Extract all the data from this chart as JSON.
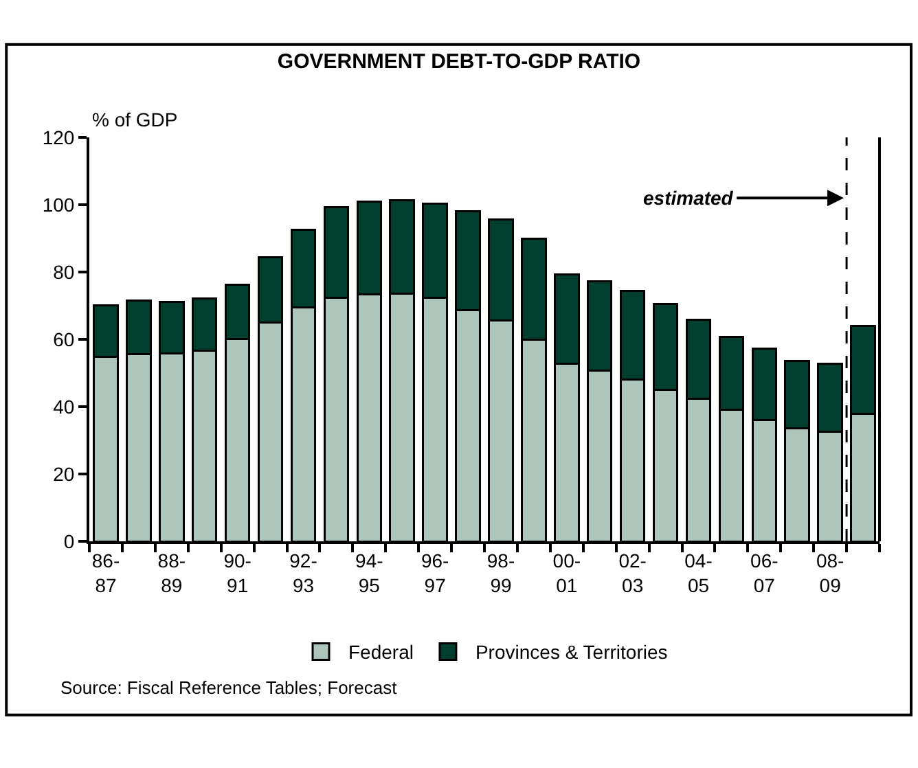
{
  "chart_data": {
    "type": "bar",
    "title": "GOVERNMENT DEBT-TO-GDP RATIO",
    "ylabel": "% of GDP",
    "categories": [
      "86-87",
      null,
      "88-89",
      null,
      "90-91",
      null,
      "92-93",
      null,
      "94-95",
      null,
      "96-97",
      null,
      "98-99",
      null,
      "00-01",
      null,
      "02-03",
      null,
      "04-05",
      null,
      "06-07",
      null,
      "08-09",
      null
    ],
    "stacked": true,
    "series": [
      {
        "name": "Federal",
        "color": "#adc6bb",
        "values": [
          54.8,
          55.7,
          55.8,
          56.7,
          60.2,
          64.9,
          69.4,
          72.4,
          73.3,
          73.5,
          72.4,
          68.6,
          65.6,
          59.8,
          52.8,
          50.8,
          48.1,
          45.0,
          42.3,
          39.0,
          36.0,
          33.5,
          32.6,
          37.8
        ]
      },
      {
        "name": "Provinces & Territories",
        "color": "#003f2d",
        "values": [
          15.3,
          15.8,
          15.3,
          15.4,
          16.1,
          19.4,
          23.2,
          26.8,
          27.6,
          27.9,
          28.0,
          29.4,
          30.1,
          30.0,
          26.5,
          26.4,
          26.2,
          25.5,
          23.6,
          21.7,
          21.3,
          20.0,
          20.1,
          26.2
        ]
      }
    ],
    "ylim": [
      0,
      120
    ],
    "yticks": [
      0,
      20,
      40,
      60,
      80,
      100,
      120
    ],
    "annotations": [
      "estimated",
      "Source: Fiscal Reference Tables; Forecast"
    ],
    "legend": "bottom"
  }
}
